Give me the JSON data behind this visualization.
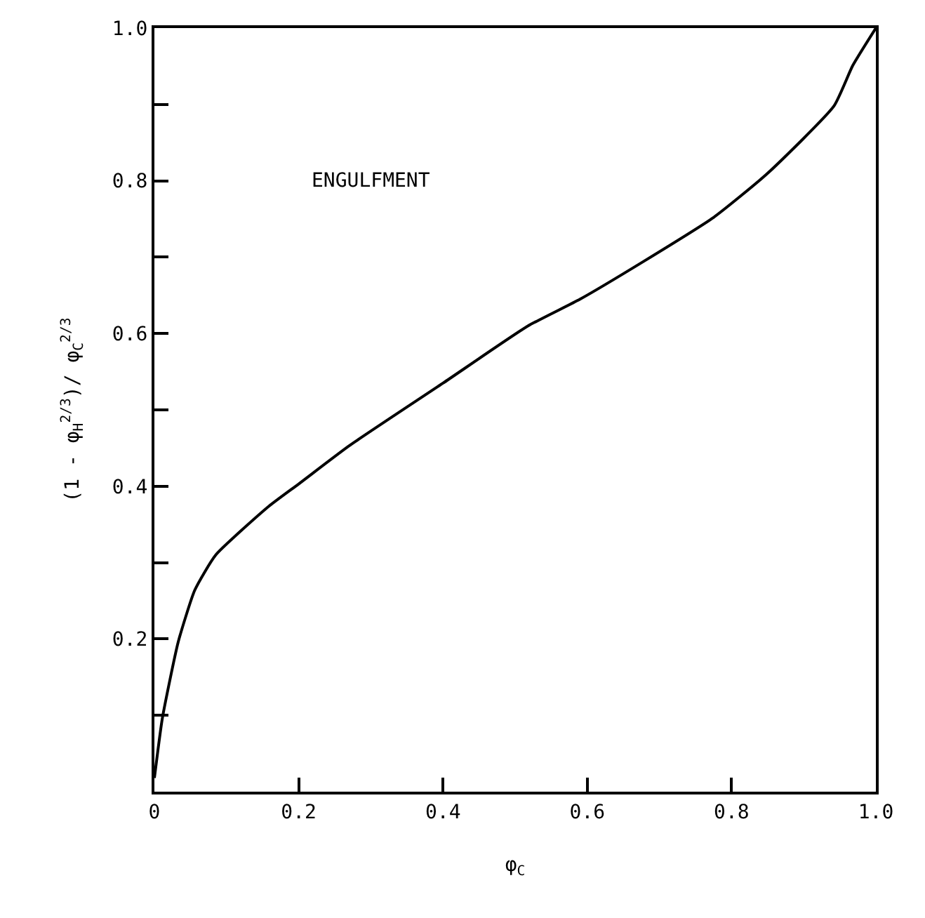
{
  "chart_data": {
    "type": "line",
    "xlabel": "φ$_{C}$",
    "ylabel": "(1 - φ$_{H}$$^{2/3}$)/ φ$_{C}$$^{2/3}$",
    "annotations": [
      "ENGULFMENT"
    ],
    "x": [
      0,
      0.011,
      0.033,
      0.056,
      0.085,
      0.159,
      0.2,
      0.27,
      0.4,
      0.518,
      0.59,
      0.679,
      0.775,
      0.849,
      0.942,
      0.968,
      1.0
    ],
    "series": [
      {
        "color": "#000000",
        "values": [
          0.018,
          0.096,
          0.196,
          0.264,
          0.31,
          0.374,
          0.403,
          0.453,
          0.535,
          0.61,
          0.645,
          0.695,
          0.752,
          0.809,
          0.898,
          0.951,
          1.0
        ]
      }
    ],
    "xlim": [
      0,
      1
    ],
    "ylim": [
      0,
      1
    ],
    "xticks": [
      0,
      0.2,
      0.4,
      0.6,
      0.8,
      {
        "value": 1.0,
        "label": "1.0"
      }
    ],
    "yticks": [
      {
        "value": 0.1,
        "label": null
      },
      0.2,
      {
        "value": 0.3,
        "label": null
      },
      0.4,
      {
        "value": 0.5,
        "label": null
      },
      0.6,
      {
        "value": 0.7,
        "label": null
      },
      0.8,
      {
        "value": 0.9,
        "label": null
      },
      {
        "value": 1.0,
        "label": "1.0"
      }
    ],
    "marker": "none",
    "line_style": "solid"
  }
}
